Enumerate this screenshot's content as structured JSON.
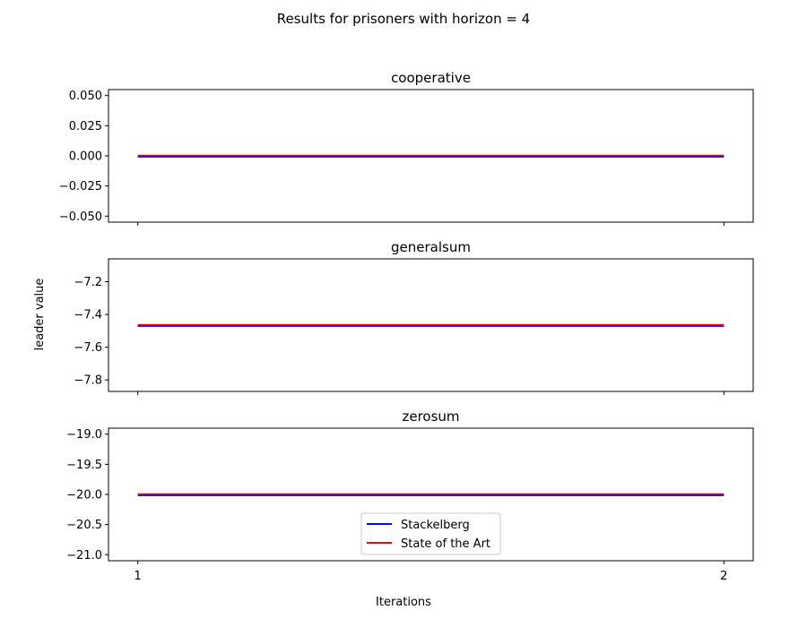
{
  "figure": {
    "suptitle": "Results for prisoners with horizon = 4",
    "xlabel": "Iterations",
    "ylabel": "leader value"
  },
  "colors": {
    "stackelberg": "#0000ff",
    "state_of_the_art": "#ff0000",
    "axes": "#000000"
  },
  "legend": {
    "placement": "lower-center",
    "entries": [
      "Stackelberg",
      "State of the Art"
    ]
  },
  "chart_data": [
    {
      "type": "line",
      "title": "cooperative",
      "x": [
        1,
        2
      ],
      "xlim": [
        0.95,
        2.05
      ],
      "xticks": [],
      "ylim": [
        -0.055,
        0.055
      ],
      "yticks": [
        0.05,
        0.025,
        0.0,
        -0.025,
        -0.05
      ],
      "ytick_labels": [
        "0.050",
        "0.025",
        "0.000",
        "−0.025",
        "−0.050"
      ],
      "series": [
        {
          "name": "Stackelberg",
          "values": [
            0.0,
            0.0
          ]
        },
        {
          "name": "State of the Art",
          "values": [
            0.0,
            0.0
          ]
        }
      ]
    },
    {
      "type": "line",
      "title": "generalsum",
      "x": [
        1,
        2
      ],
      "xlim": [
        0.95,
        2.05
      ],
      "xticks": [],
      "ylim": [
        -7.87,
        -7.06
      ],
      "yticks": [
        -7.2,
        -7.4,
        -7.6,
        -7.8
      ],
      "ytick_labels": [
        "−7.2",
        "−7.4",
        "−7.6",
        "−7.8"
      ],
      "series": [
        {
          "name": "Stackelberg",
          "values": [
            -7.465,
            -7.465
          ]
        },
        {
          "name": "State of the Art",
          "values": [
            -7.465,
            -7.465
          ]
        }
      ]
    },
    {
      "type": "line",
      "title": "zerosum",
      "x": [
        1,
        2
      ],
      "xlim": [
        0.95,
        2.05
      ],
      "xticks": [
        1,
        2
      ],
      "xtick_labels": [
        "1",
        "2"
      ],
      "ylim": [
        -21.1,
        -18.9
      ],
      "yticks": [
        -19.0,
        -19.5,
        -20.0,
        -20.5,
        -21.0
      ],
      "ytick_labels": [
        "−19.0",
        "−19.5",
        "−20.0",
        "−20.5",
        "−21.0"
      ],
      "series": [
        {
          "name": "Stackelberg",
          "values": [
            -20.0,
            -20.0
          ]
        },
        {
          "name": "State of the Art",
          "values": [
            -20.0,
            -20.0
          ]
        }
      ]
    }
  ]
}
